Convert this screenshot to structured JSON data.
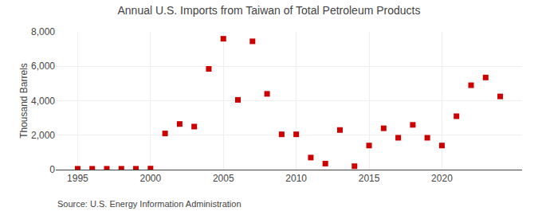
{
  "chart_data": {
    "type": "scatter",
    "title": "Annual U.S. Imports from Taiwan of Total Petroleum Products",
    "ylabel": "Thousand Barrels",
    "annotations": [
      "Source: U.S. Energy Information Administration"
    ],
    "x": [
      1995,
      1996,
      1997,
      1998,
      1999,
      2000,
      2001,
      2002,
      2003,
      2004,
      2005,
      2006,
      2007,
      2008,
      2009,
      2010,
      2011,
      2012,
      2013,
      2014,
      2015,
      2016,
      2017,
      2018,
      2019,
      2020,
      2021,
      2022,
      2023,
      2024
    ],
    "values": [
      50,
      50,
      50,
      50,
      50,
      60,
      2100,
      2650,
      2500,
      5850,
      7600,
      4050,
      7450,
      4400,
      2050,
      2050,
      700,
      350,
      2300,
      200,
      1400,
      2400,
      1850,
      2600,
      1850,
      1400,
      3100,
      4900,
      5350,
      4250
    ],
    "color": "#cc0000",
    "marker": "square",
    "xlim": [
      1993.5,
      2025.5
    ],
    "xticks": [
      1995,
      2000,
      2005,
      2010,
      2015,
      2020
    ],
    "ylim": [
      0,
      8000
    ],
    "yticks": [
      0,
      {
        "value": 2000,
        "label": "2,000"
      },
      {
        "value": 4000,
        "label": "4,000"
      },
      {
        "value": 6000,
        "label": "6,000"
      },
      {
        "value": 8000,
        "label": "8,000"
      }
    ],
    "grid": true
  }
}
